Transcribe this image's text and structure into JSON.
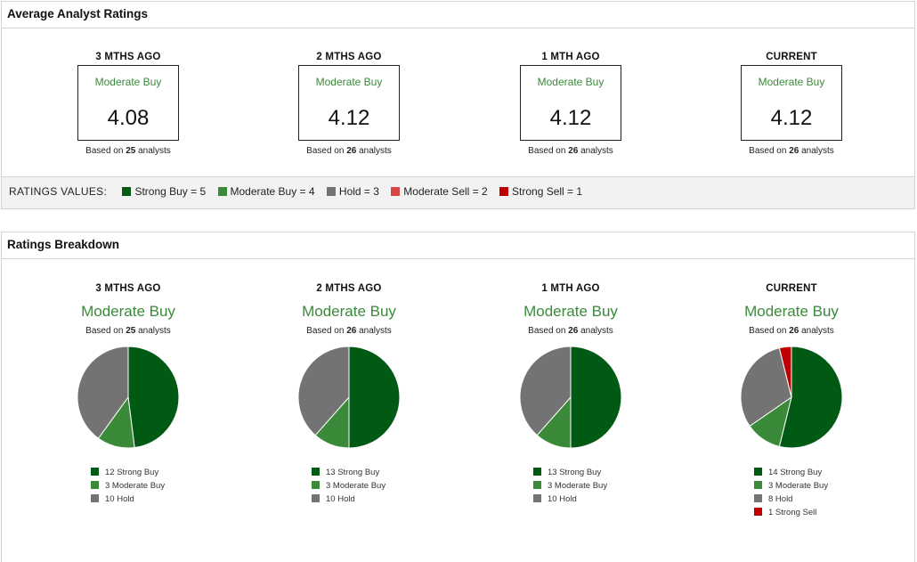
{
  "colors": {
    "strong_buy": "#005a14",
    "moderate_buy": "#3a8a3a",
    "hold": "#737373",
    "moderate_sell": "#d94545",
    "strong_sell": "#c00000"
  },
  "avg_panel": {
    "title": "Average Analyst Ratings",
    "columns": [
      {
        "period": "3 MTHS AGO",
        "label": "Moderate Buy",
        "value": "4.08",
        "based_prefix": "Based on ",
        "count": "25",
        "based_suffix": " analysts"
      },
      {
        "period": "2 MTHS AGO",
        "label": "Moderate Buy",
        "value": "4.12",
        "based_prefix": "Based on ",
        "count": "26",
        "based_suffix": " analysts"
      },
      {
        "period": "1 MTH AGO",
        "label": "Moderate Buy",
        "value": "4.12",
        "based_prefix": "Based on ",
        "count": "26",
        "based_suffix": " analysts"
      },
      {
        "period": "CURRENT",
        "label": "Moderate Buy",
        "value": "4.12",
        "based_prefix": "Based on ",
        "count": "26",
        "based_suffix": " analysts"
      }
    ],
    "ratings_values": {
      "title": "RATINGS VALUES:",
      "items": [
        {
          "label": "Strong Buy = 5",
          "color_key": "strong_buy"
        },
        {
          "label": "Moderate Buy = 4",
          "color_key": "moderate_buy"
        },
        {
          "label": "Hold = 3",
          "color_key": "hold"
        },
        {
          "label": "Moderate Sell = 2",
          "color_key": "moderate_sell"
        },
        {
          "label": "Strong Sell = 1",
          "color_key": "strong_sell"
        }
      ]
    }
  },
  "breakdown_panel": {
    "title": "Ratings Breakdown",
    "columns": [
      {
        "period": "3 MTHS AGO",
        "consensus": "Moderate Buy",
        "based_prefix": "Based on ",
        "count": "25",
        "based_suffix": " analysts",
        "legend": [
          "12 Strong Buy",
          "3 Moderate Buy",
          "10 Hold"
        ]
      },
      {
        "period": "2 MTHS AGO",
        "consensus": "Moderate Buy",
        "based_prefix": "Based on ",
        "count": "26",
        "based_suffix": " analysts",
        "legend": [
          "13 Strong Buy",
          "3 Moderate Buy",
          "10 Hold"
        ]
      },
      {
        "period": "1 MTH AGO",
        "consensus": "Moderate Buy",
        "based_prefix": "Based on ",
        "count": "26",
        "based_suffix": " analysts",
        "legend": [
          "13 Strong Buy",
          "3 Moderate Buy",
          "10 Hold"
        ]
      },
      {
        "period": "CURRENT",
        "consensus": "Moderate Buy",
        "based_prefix": "Based on ",
        "count": "26",
        "based_suffix": " analysts",
        "legend": [
          "14 Strong Buy",
          "3 Moderate Buy",
          "8 Hold",
          "1 Strong Sell"
        ]
      }
    ]
  },
  "chart_data": [
    {
      "type": "pie",
      "categories": [
        "Strong Buy",
        "Moderate Buy",
        "Hold"
      ],
      "values": [
        12,
        3,
        10
      ],
      "colors": [
        "#005a14",
        "#3a8a3a",
        "#737373"
      ]
    },
    {
      "type": "pie",
      "categories": [
        "Strong Buy",
        "Moderate Buy",
        "Hold"
      ],
      "values": [
        13,
        3,
        10
      ],
      "colors": [
        "#005a14",
        "#3a8a3a",
        "#737373"
      ]
    },
    {
      "type": "pie",
      "categories": [
        "Strong Buy",
        "Moderate Buy",
        "Hold"
      ],
      "values": [
        13,
        3,
        10
      ],
      "colors": [
        "#005a14",
        "#3a8a3a",
        "#737373"
      ]
    },
    {
      "type": "pie",
      "categories": [
        "Strong Buy",
        "Moderate Buy",
        "Hold",
        "Strong Sell"
      ],
      "values": [
        14,
        3,
        8,
        1
      ],
      "colors": [
        "#005a14",
        "#3a8a3a",
        "#737373",
        "#c00000"
      ]
    }
  ]
}
